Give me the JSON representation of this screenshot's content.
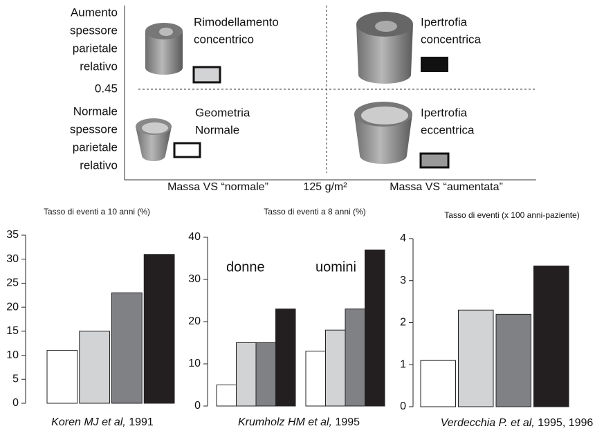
{
  "diagram": {
    "upper_label": [
      "Aumento",
      "spessore",
      "parietale",
      "relativo"
    ],
    "threshold": "0.45",
    "lower_label": [
      "Normale",
      "spessore",
      "parietale",
      "relativo"
    ],
    "quadrants": [
      [
        "Rimodellamento",
        "concentrico"
      ],
      [
        "Ipertrofia",
        "concentrica"
      ],
      [
        "Geometria",
        "Normale"
      ],
      [
        "Ipertrofia",
        "eccentrica"
      ]
    ],
    "x_labels": [
      "Massa VS “normale”",
      "125 g/m²",
      "Massa VS “aumentata”"
    ]
  },
  "chart_data": [
    {
      "type": "bar",
      "title": "Tasso di eventi a 10 anni (%)",
      "categories": [
        null,
        null,
        null,
        null
      ],
      "values": [
        11,
        15,
        23,
        31
      ],
      "colors": [
        "#ffffff",
        "#d2d3d5",
        "#808185",
        "#231f20"
      ],
      "ylim": [
        0,
        35
      ],
      "yticks": [
        0,
        5,
        10,
        15,
        20,
        25,
        30,
        35
      ],
      "source": {
        "authors": "Koren MJ et al,",
        "year": "1991"
      }
    },
    {
      "type": "grouped-bar",
      "title": "Tasso di eventi a 8 anni (%)",
      "categories": [
        "donne",
        "uomini"
      ],
      "series": [
        {
          "color": "#ffffff",
          "values": [
            5,
            13
          ]
        },
        {
          "color": "#d2d3d5",
          "values": [
            15,
            18
          ]
        },
        {
          "color": "#808185",
          "values": [
            15,
            23
          ]
        },
        {
          "color": "#231f20",
          "values": [
            23,
            37
          ]
        }
      ],
      "ylim": [
        0,
        40
      ],
      "yticks": [
        0,
        10,
        20,
        30,
        40
      ],
      "source": {
        "authors": "Krumholz HM et al,",
        "year": "1995"
      }
    },
    {
      "type": "bar",
      "title": "Tasso di eventi (x 100 anni-paziente)",
      "categories": [
        null,
        null,
        null,
        null
      ],
      "values": [
        1.1,
        2.3,
        2.2,
        3.35
      ],
      "colors": [
        "#ffffff",
        "#d2d3d5",
        "#808185",
        "#231f20"
      ],
      "ylim": [
        0,
        4
      ],
      "yticks": [
        0,
        1,
        2,
        3,
        4
      ],
      "source": {
        "authors": "Verdecchia P. et al,",
        "year": "1995, 1996"
      }
    }
  ]
}
